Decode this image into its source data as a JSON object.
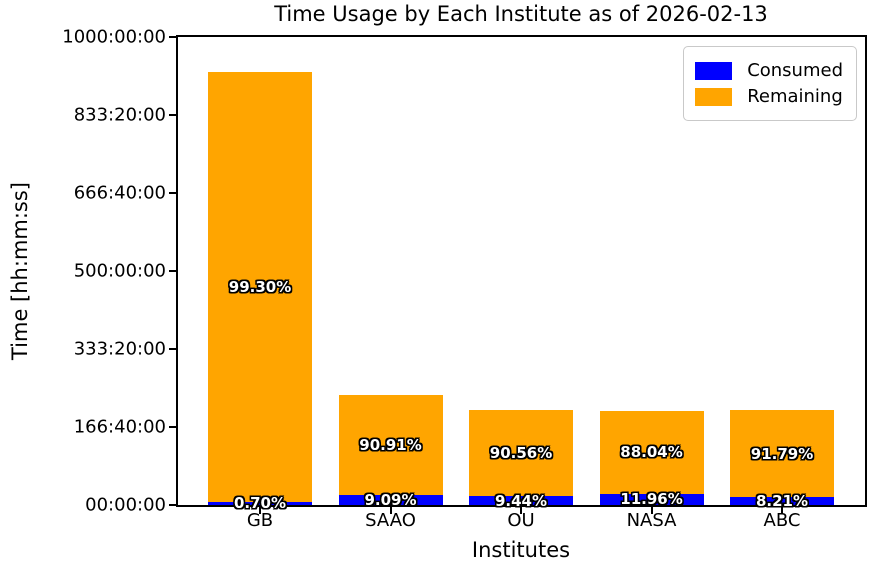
{
  "chart_data": {
    "type": "bar",
    "stacked": true,
    "title": "Time Usage by Each Institute as of 2026-02-13",
    "xlabel": "Institutes",
    "ylabel": "Time [hh:mm:ss]",
    "categories": [
      "GB",
      "SAAO",
      "OU",
      "NASA",
      "ABC"
    ],
    "totals_hours": [
      925,
      235,
      203,
      201,
      203
    ],
    "series": [
      {
        "name": "Consumed",
        "color": "#0000ff",
        "values_hours": [
          6.5,
          21.4,
          19.2,
          24.0,
          16.7
        ],
        "percent_labels": [
          "0.70%",
          "9.09%",
          "9.44%",
          "11.96%",
          "8.21%"
        ]
      },
      {
        "name": "Remaining",
        "color": "#ffa500",
        "values_hours": [
          918.5,
          213.6,
          183.8,
          177.0,
          186.3
        ],
        "percent_labels": [
          "99.30%",
          "90.91%",
          "90.56%",
          "88.04%",
          "91.79%"
        ]
      }
    ],
    "y_ticks": [
      {
        "label": "00:00:00",
        "hours": 0
      },
      {
        "label": "166:40:00",
        "hours": 166.6667
      },
      {
        "label": "333:20:00",
        "hours": 333.3333
      },
      {
        "label": "500:00:00",
        "hours": 500
      },
      {
        "label": "666:40:00",
        "hours": 666.6667
      },
      {
        "label": "833:20:00",
        "hours": 833.3333
      },
      {
        "label": "1000:00:00",
        "hours": 1000
      }
    ],
    "ylim_hours": [
      0,
      1000
    ],
    "grid": false,
    "legend_position": "upper right",
    "label_text_color": "#ffffff",
    "label_outline_color": "#000000"
  }
}
